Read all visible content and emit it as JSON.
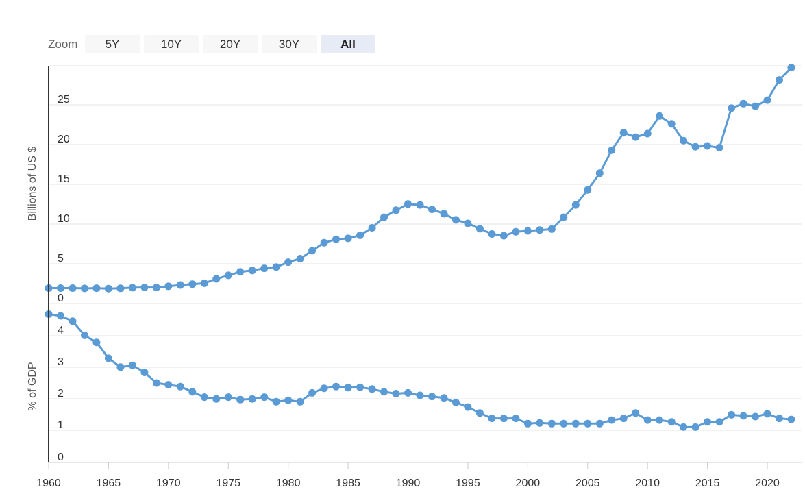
{
  "zoom": {
    "label": "Zoom",
    "buttons": [
      {
        "label": "5Y",
        "active": false
      },
      {
        "label": "10Y",
        "active": false
      },
      {
        "label": "20Y",
        "active": false
      },
      {
        "label": "30Y",
        "active": false
      },
      {
        "label": "All",
        "active": true
      }
    ]
  },
  "chart_data": [
    {
      "type": "line",
      "ylabel": "Billions of US $",
      "ylim": [
        0,
        27
      ],
      "yticks": [
        "0",
        "5",
        "10",
        "15",
        "20",
        "25"
      ],
      "xticks": [
        "1960",
        "1965",
        "1970",
        "1975",
        "1980",
        "1985",
        "1990",
        "1995",
        "2000",
        "2005",
        "2010",
        "2015",
        "2020"
      ],
      "x": [
        1960,
        1961,
        1962,
        1963,
        1964,
        1965,
        1966,
        1967,
        1968,
        1969,
        1970,
        1971,
        1972,
        1973,
        1974,
        1975,
        1976,
        1977,
        1978,
        1979,
        1980,
        1981,
        1982,
        1983,
        1984,
        1985,
        1986,
        1987,
        1988,
        1989,
        1990,
        1991,
        1992,
        1993,
        1994,
        1995,
        1996,
        1997,
        1998,
        1999,
        2000,
        2001,
        2002,
        2003,
        2004,
        2005,
        2006,
        2007,
        2008,
        2009,
        2010,
        2011,
        2012,
        2013,
        2014,
        2015,
        2016,
        2017,
        2018,
        2019,
        2020,
        2021,
        2022
      ],
      "series": [
        {
          "values": [
            1.75,
            1.75,
            1.75,
            1.72,
            1.74,
            1.7,
            1.73,
            1.8,
            1.83,
            1.82,
            1.95,
            2.1,
            2.2,
            2.3,
            2.8,
            3.2,
            3.6,
            3.75,
            4.0,
            4.15,
            4.7,
            5.1,
            6.0,
            6.9,
            7.3,
            7.4,
            7.75,
            8.6,
            9.8,
            10.6,
            11.3,
            11.2,
            10.7,
            10.2,
            9.5,
            9.1,
            8.5,
            7.9,
            7.7,
            8.15,
            8.25,
            8.35,
            8.45,
            9.8,
            11.2,
            12.9,
            14.8,
            17.4,
            19.4,
            18.9,
            19.3,
            21.3,
            20.4,
            18.5,
            17.8,
            17.9,
            17.7,
            22.2,
            22.7,
            22.4,
            23.1,
            25.4,
            26.8
          ]
        }
      ]
    },
    {
      "type": "line",
      "ylabel": "% of GDP",
      "ylim": [
        0,
        4.5
      ],
      "yticks": [
        "0",
        "1",
        "2",
        "3",
        "4"
      ],
      "xticks": [
        "1960",
        "1965",
        "1970",
        "1975",
        "1980",
        "1985",
        "1990",
        "1995",
        "2000",
        "2005",
        "2010",
        "2015",
        "2020"
      ],
      "x": [
        1960,
        1961,
        1962,
        1963,
        1964,
        1965,
        1966,
        1967,
        1968,
        1969,
        1970,
        1971,
        1972,
        1973,
        1974,
        1975,
        1976,
        1977,
        1978,
        1979,
        1980,
        1981,
        1982,
        1983,
        1984,
        1985,
        1986,
        1987,
        1988,
        1989,
        1990,
        1991,
        1992,
        1993,
        1994,
        1995,
        1996,
        1997,
        1998,
        1999,
        2000,
        2001,
        2002,
        2003,
        2004,
        2005,
        2006,
        2007,
        2008,
        2009,
        2010,
        2011,
        2012,
        2013,
        2014,
        2015,
        2016,
        2017,
        2018,
        2019,
        2020,
        2021,
        2022
      ],
      "series": [
        {
          "values": [
            4.2,
            4.15,
            4.0,
            3.6,
            3.4,
            2.95,
            2.7,
            2.75,
            2.55,
            2.25,
            2.2,
            2.15,
            2.0,
            1.85,
            1.8,
            1.85,
            1.78,
            1.8,
            1.85,
            1.72,
            1.76,
            1.72,
            1.97,
            2.1,
            2.15,
            2.12,
            2.13,
            2.08,
            2.0,
            1.95,
            1.97,
            1.9,
            1.87,
            1.83,
            1.7,
            1.57,
            1.4,
            1.25,
            1.25,
            1.25,
            1.1,
            1.12,
            1.1,
            1.1,
            1.1,
            1.1,
            1.1,
            1.2,
            1.25,
            1.4,
            1.2,
            1.2,
            1.15,
            1.0,
            1.0,
            1.15,
            1.15,
            1.35,
            1.32,
            1.3,
            1.38,
            1.25,
            1.22
          ]
        }
      ]
    }
  ]
}
